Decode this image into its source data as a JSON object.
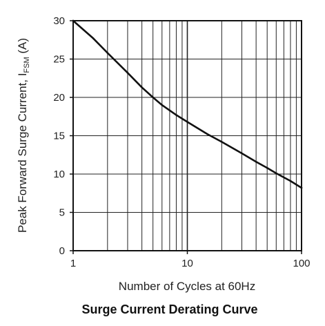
{
  "chart_data": {
    "type": "line",
    "title": "Surge Current Derating Curve",
    "xlabel": "Number of Cycles at 60Hz",
    "ylabel": {
      "main": "Peak Forward Surge Current, I",
      "sub": "FSM",
      "unit": " (A)"
    },
    "xscale": "log",
    "xlim": [
      1,
      100
    ],
    "ylim": [
      0,
      30
    ],
    "xticks": [
      "1",
      "10",
      "100"
    ],
    "yticks": [
      "0",
      "5",
      "10",
      "15",
      "20",
      "25",
      "30"
    ],
    "grid": true,
    "series": [
      {
        "x": [
          1,
          1.5,
          2,
          3,
          4,
          5,
          6,
          8,
          10,
          15,
          20,
          30,
          40,
          50,
          60,
          80,
          100
        ],
        "y": [
          30,
          27.7,
          25.8,
          23.2,
          21.3,
          20.0,
          19.0,
          17.7,
          16.8,
          15.2,
          14.2,
          12.7,
          11.6,
          10.8,
          10.1,
          9.1,
          8.2
        ]
      }
    ]
  },
  "style": {
    "line_color": "#111111",
    "grid_color": "#222222",
    "axis_color": "#111111"
  }
}
